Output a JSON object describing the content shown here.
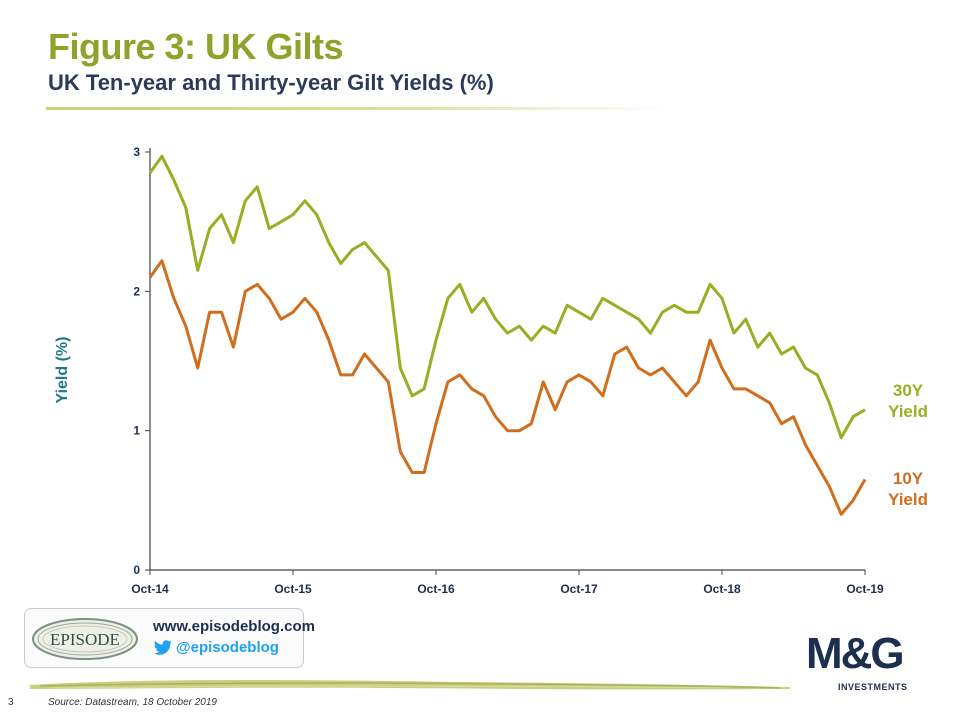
{
  "header": {
    "title": "Figure 3: UK Gilts",
    "subtitle": "UK Ten-year and Thirty-year Gilt Yields (%)"
  },
  "chart_data": {
    "type": "line",
    "ylabel": "Yield (%)",
    "ylim": [
      0,
      3
    ],
    "yticks": [
      "0",
      "1",
      "2",
      "3"
    ],
    "xlim": [
      "2014-10",
      "2019-10"
    ],
    "xticks": [
      "Oct-14",
      "Oct-15",
      "Oct-16",
      "Oct-17",
      "Oct-18",
      "Oct-19"
    ],
    "grid": false,
    "series": [
      {
        "name": "30Y Yield",
        "label_lines": [
          "30Y",
          "Yield"
        ],
        "color": "#9BAD24",
        "x": [
          "2014-10",
          "2014-11",
          "2014-12",
          "2015-01",
          "2015-02",
          "2015-03",
          "2015-04",
          "2015-05",
          "2015-06",
          "2015-07",
          "2015-08",
          "2015-09",
          "2015-10",
          "2015-11",
          "2015-12",
          "2016-01",
          "2016-02",
          "2016-03",
          "2016-04",
          "2016-05",
          "2016-06",
          "2016-07",
          "2016-08",
          "2016-09",
          "2016-10",
          "2016-11",
          "2016-12",
          "2017-01",
          "2017-02",
          "2017-03",
          "2017-04",
          "2017-05",
          "2017-06",
          "2017-07",
          "2017-08",
          "2017-09",
          "2017-10",
          "2017-11",
          "2017-12",
          "2018-01",
          "2018-02",
          "2018-03",
          "2018-04",
          "2018-05",
          "2018-06",
          "2018-07",
          "2018-08",
          "2018-09",
          "2018-10",
          "2018-11",
          "2018-12",
          "2019-01",
          "2019-02",
          "2019-03",
          "2019-04",
          "2019-05",
          "2019-06",
          "2019-07",
          "2019-08",
          "2019-09",
          "2019-10"
        ],
        "values": [
          2.85,
          2.97,
          2.8,
          2.6,
          2.15,
          2.45,
          2.55,
          2.35,
          2.65,
          2.75,
          2.45,
          2.5,
          2.55,
          2.65,
          2.55,
          2.35,
          2.2,
          2.3,
          2.35,
          2.25,
          2.15,
          1.45,
          1.25,
          1.3,
          1.65,
          1.95,
          2.05,
          1.85,
          1.95,
          1.8,
          1.7,
          1.75,
          1.65,
          1.75,
          1.7,
          1.9,
          1.85,
          1.8,
          1.95,
          1.9,
          1.85,
          1.8,
          1.7,
          1.85,
          1.9,
          1.85,
          1.85,
          2.05,
          1.95,
          1.7,
          1.8,
          1.6,
          1.7,
          1.55,
          1.6,
          1.45,
          1.4,
          1.2,
          0.95,
          1.1,
          1.15
        ]
      },
      {
        "name": "10Y Yield",
        "label_lines": [
          "10Y",
          "Yield"
        ],
        "color": "#D06E1E",
        "x": [
          "2014-10",
          "2014-11",
          "2014-12",
          "2015-01",
          "2015-02",
          "2015-03",
          "2015-04",
          "2015-05",
          "2015-06",
          "2015-07",
          "2015-08",
          "2015-09",
          "2015-10",
          "2015-11",
          "2015-12",
          "2016-01",
          "2016-02",
          "2016-03",
          "2016-04",
          "2016-05",
          "2016-06",
          "2016-07",
          "2016-08",
          "2016-09",
          "2016-10",
          "2016-11",
          "2016-12",
          "2017-01",
          "2017-02",
          "2017-03",
          "2017-04",
          "2017-05",
          "2017-06",
          "2017-07",
          "2017-08",
          "2017-09",
          "2017-10",
          "2017-11",
          "2017-12",
          "2018-01",
          "2018-02",
          "2018-03",
          "2018-04",
          "2018-05",
          "2018-06",
          "2018-07",
          "2018-08",
          "2018-09",
          "2018-10",
          "2018-11",
          "2018-12",
          "2019-01",
          "2019-02",
          "2019-03",
          "2019-04",
          "2019-05",
          "2019-06",
          "2019-07",
          "2019-08",
          "2019-09",
          "2019-10"
        ],
        "values": [
          2.1,
          2.22,
          1.95,
          1.75,
          1.45,
          1.85,
          1.85,
          1.6,
          2.0,
          2.05,
          1.95,
          1.8,
          1.85,
          1.95,
          1.85,
          1.65,
          1.4,
          1.4,
          1.55,
          1.45,
          1.35,
          0.85,
          0.7,
          0.7,
          1.05,
          1.35,
          1.4,
          1.3,
          1.25,
          1.1,
          1.0,
          1.0,
          1.05,
          1.35,
          1.15,
          1.35,
          1.4,
          1.35,
          1.25,
          1.55,
          1.6,
          1.45,
          1.4,
          1.45,
          1.35,
          1.25,
          1.35,
          1.65,
          1.45,
          1.3,
          1.3,
          1.25,
          1.2,
          1.05,
          1.1,
          0.9,
          0.75,
          0.6,
          0.4,
          0.5,
          0.65
        ]
      }
    ]
  },
  "footer": {
    "episode_logo_text": "EPISODE",
    "episode_url": "www.episodeblog.com",
    "episode_twitter": "@episodeblog",
    "brand_main": "M&G",
    "brand_sub": "INVESTMENTS",
    "page_number": "3",
    "source": "Source: Datastream, 18 October 2019"
  },
  "colors": {
    "title": "#8DA32C",
    "subtitle": "#2C3A59",
    "y_axis_label": "#1E7A85",
    "brand_navy": "#1D2F4F",
    "twitter_blue": "#1DA1F2"
  }
}
